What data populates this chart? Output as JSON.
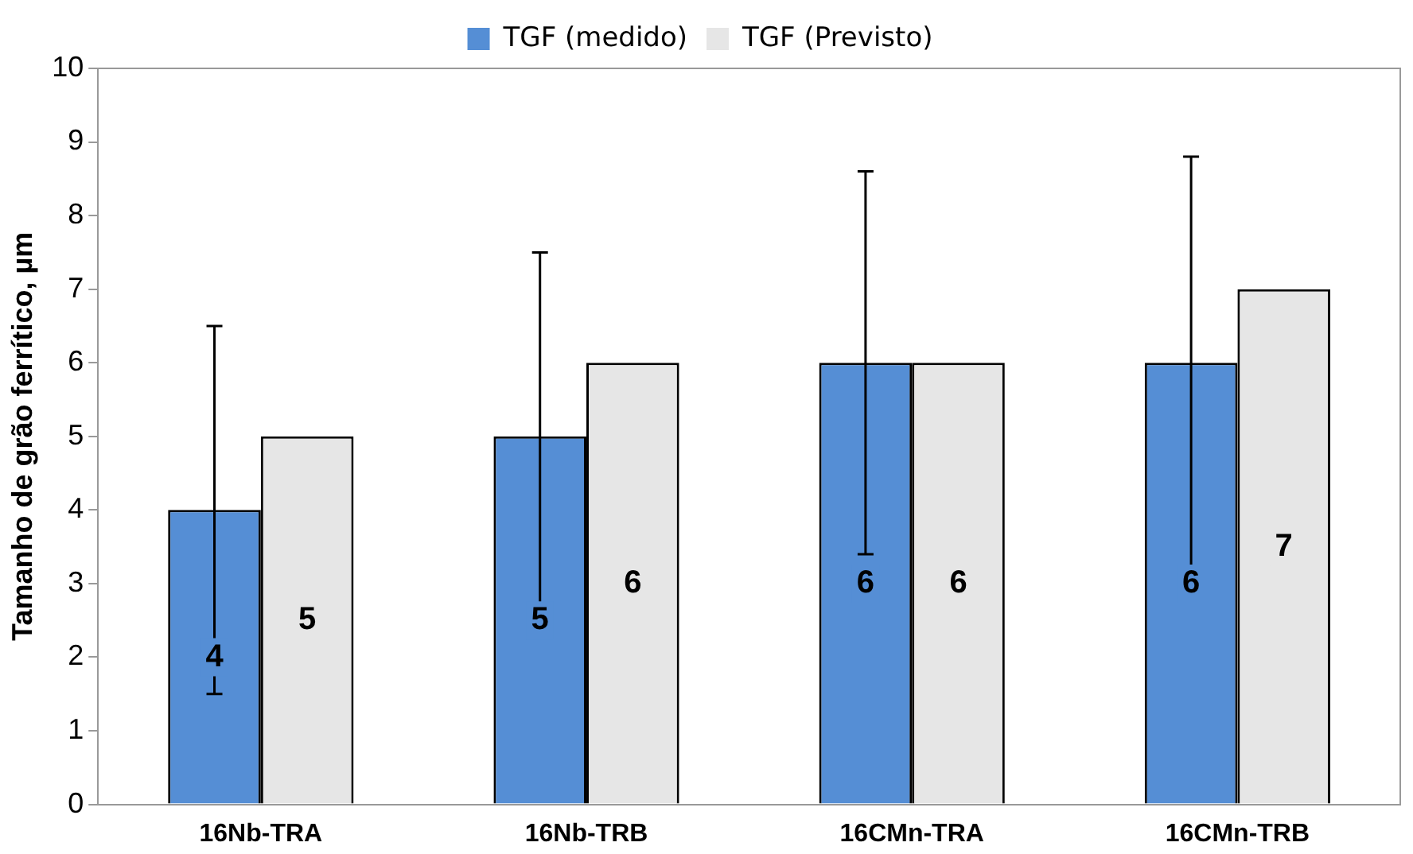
{
  "chart_data": {
    "type": "bar",
    "ylabel": "Tamanho de grão ferrítico, µm",
    "categories": [
      "16Nb-TRA",
      "16Nb-TRB",
      "16CMn-TRA",
      "16CMn-TRB"
    ],
    "series": [
      {
        "name": "TGF (medido)",
        "color": "#558ed5",
        "values": [
          4,
          5,
          6,
          6
        ],
        "errors": [
          [
            1.5,
            6.5
          ],
          [
            2.5,
            7.5
          ],
          [
            3.4,
            8.6
          ],
          [
            3.2,
            8.8
          ]
        ]
      },
      {
        "name": "TGF (Previsto)",
        "color": "#e6e6e6",
        "values": [
          5,
          6,
          6,
          7
        ]
      }
    ],
    "ylim": [
      0,
      10
    ],
    "yticks": [
      0,
      1,
      2,
      3,
      4,
      5,
      6,
      7,
      8,
      9,
      10
    ],
    "grid": false,
    "legend": "top",
    "data_labels": true
  }
}
